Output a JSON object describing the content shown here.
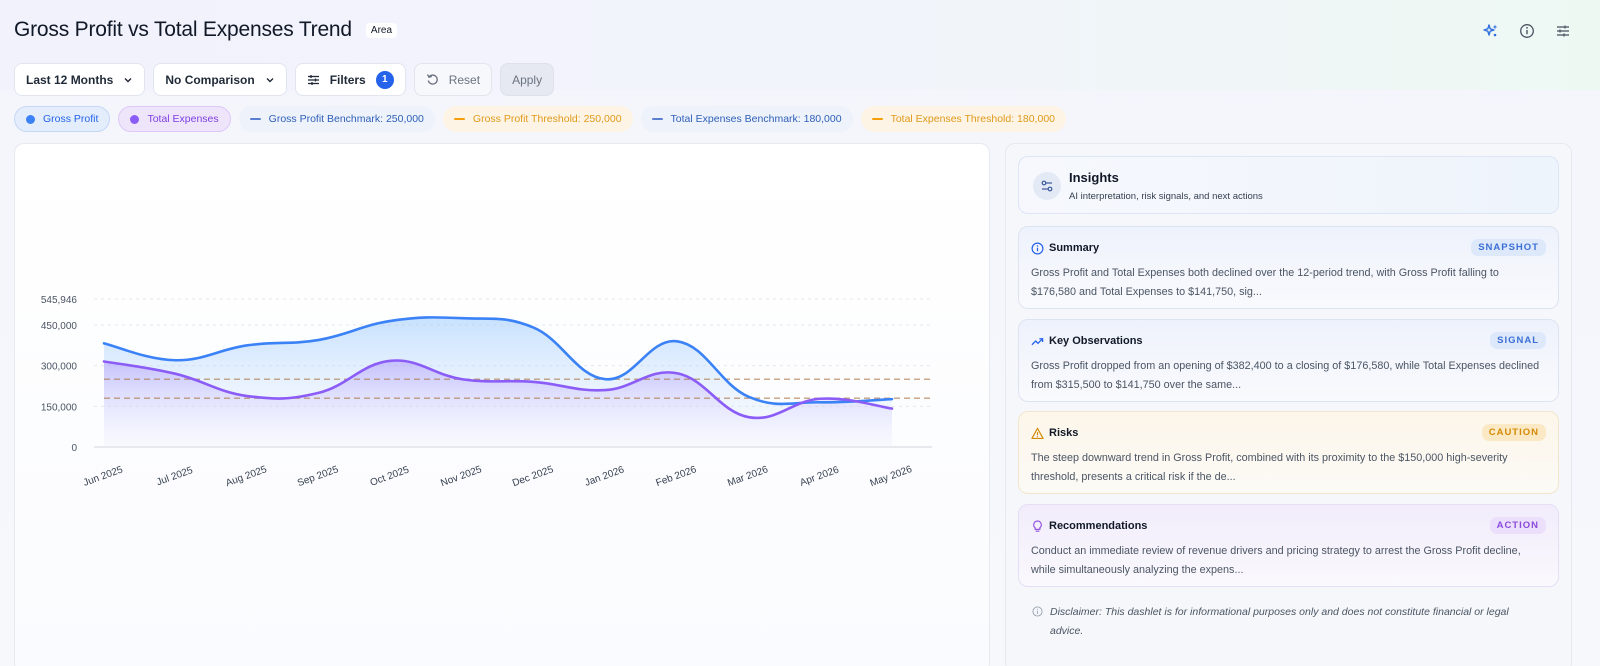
{
  "header": {
    "title": "Gross Profit vs Total Expenses Trend",
    "type_badge": "Area"
  },
  "controls": {
    "period": "Last 12 Months",
    "comparison": "No Comparison",
    "filters_label": "Filters",
    "filters_count": "1",
    "reset_label": "Reset",
    "apply_label": "Apply"
  },
  "legend": {
    "gross_profit": "Gross Profit",
    "total_expenses": "Total Expenses",
    "gp_benchmark": "Gross Profit Benchmark: 250,000",
    "gp_threshold": "Gross Profit Threshold: 250,000",
    "te_benchmark": "Total Expenses Benchmark: 180,000",
    "te_threshold": "Total Expenses Threshold: 180,000"
  },
  "colors": {
    "gross_profit": "#3b82f6",
    "total_expenses": "#8b5cf6",
    "benchmark": "#5b7fcf",
    "threshold": "#f59e0b"
  },
  "chart_data": {
    "type": "area",
    "categories": [
      "Jun 2025",
      "Jul 2025",
      "Aug 2025",
      "Sep 2025",
      "Oct 2025",
      "Nov 2025",
      "Dec 2025",
      "Jan 2026",
      "Feb 2026",
      "Mar 2026",
      "Apr 2026",
      "May 2026"
    ],
    "series": [
      {
        "name": "Gross Profit",
        "values": [
          382400,
          320000,
          375000,
          395000,
          465000,
          475000,
          440000,
          250000,
          390000,
          185000,
          165000,
          176580
        ]
      },
      {
        "name": "Total Expenses",
        "values": [
          315500,
          270000,
          188000,
          200000,
          318000,
          250000,
          240000,
          210000,
          272000,
          110000,
          178000,
          141750
        ]
      }
    ],
    "reference_lines": [
      {
        "name": "Gross Profit Benchmark",
        "value": 250000
      },
      {
        "name": "Gross Profit Threshold",
        "value": 250000
      },
      {
        "name": "Total Expenses Benchmark",
        "value": 180000
      },
      {
        "name": "Total Expenses Threshold",
        "value": 180000
      }
    ],
    "y_ticks": [
      "0",
      "150,000",
      "300,000",
      "450,000",
      "545,946"
    ],
    "y_tick_values": [
      0,
      150000,
      300000,
      450000,
      545946
    ],
    "ylim": [
      0,
      545946
    ],
    "grid": true,
    "legend_position": "top"
  },
  "insights": {
    "title": "Insights",
    "subtitle": "AI interpretation, risk signals, and next actions",
    "cards": [
      {
        "title": "Summary",
        "tag": "SNAPSHOT",
        "text": "Gross Profit and Total Expenses both declined over the 12-period trend, with Gross Profit falling to $176,580 and Total Expenses to $141,750, sig..."
      },
      {
        "title": "Key Observations",
        "tag": "SIGNAL",
        "text": "Gross Profit dropped from an opening of $382,400 to a closing of $176,580, while Total Expenses declined from $315,500 to $141,750 over the same..."
      },
      {
        "title": "Risks",
        "tag": "CAUTION",
        "text": "The steep downward trend in Gross Profit, combined with its proximity to the $150,000 high-severity threshold, presents a critical risk if the de..."
      },
      {
        "title": "Recommendations",
        "tag": "ACTION",
        "text": "Conduct an immediate review of revenue drivers and pricing strategy to arrest the Gross Profit decline, while simultaneously analyzing the expens..."
      }
    ],
    "disclaimer": "Disclaimer: This dashlet is for informational purposes only and does not constitute financial or legal advice."
  }
}
